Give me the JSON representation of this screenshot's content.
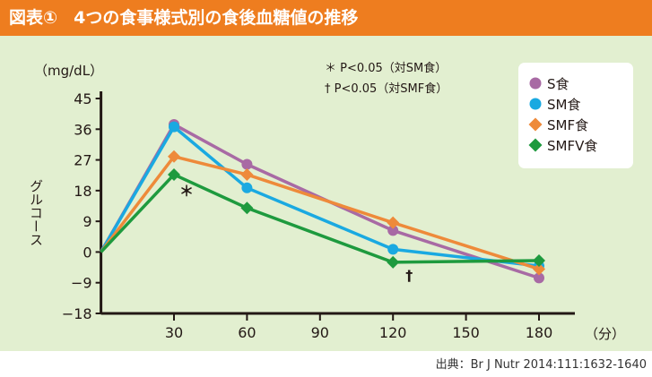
{
  "header": {
    "figure_label": "図表①",
    "title": "4つの食事様式別の食後血糖値の推移"
  },
  "source": "出典：Br J Nutr 2014:111:1632-1640",
  "chart_data": {
    "type": "line",
    "title": "4つの食事様式別の食後血糖値の推移",
    "xlabel": "（分）",
    "ylabel": "グルコース",
    "yunit": "（mg/dL）",
    "x": [
      0,
      30,
      60,
      120,
      180
    ],
    "xticks": [
      30,
      60,
      90,
      120,
      150,
      180
    ],
    "xtick_labels": [
      "30",
      "60",
      "90",
      "120",
      "150",
      "180"
    ],
    "yticks": [
      45,
      36,
      27,
      18,
      9,
      0,
      -9,
      -18
    ],
    "ytick_labels": [
      "45",
      "36",
      "27",
      "18",
      "9",
      "0",
      "−9",
      "−18"
    ],
    "xlim": [
      0,
      180
    ],
    "ylim": [
      -18,
      45
    ],
    "grid": false,
    "legend_position": "top-right",
    "series": [
      {
        "name": "S食",
        "marker": "circle",
        "color": "#a86aa4",
        "values": [
          0,
          37.4,
          25.7,
          6.3,
          -7.6
        ]
      },
      {
        "name": "SM食",
        "marker": "circle",
        "color": "#1aa9e1",
        "values": [
          0,
          36.7,
          18.8,
          0.8,
          -4.1
        ]
      },
      {
        "name": "SMF食",
        "marker": "diamond",
        "color": "#ee8a3a",
        "values": [
          0,
          28,
          22.7,
          8.6,
          -5
        ]
      },
      {
        "name": "SMFV食",
        "marker": "diamond",
        "color": "#1e9a3e",
        "values": [
          0,
          22.7,
          12.9,
          -3,
          -2.5
        ]
      }
    ],
    "annotations": [
      {
        "text": "＊",
        "x": 30,
        "y": 22.7,
        "series": "SMFV食"
      },
      {
        "text": "†",
        "x": 120,
        "y": -3,
        "series": "SMFV食"
      }
    ],
    "notes": [
      "＊ P<0.05（対SM食）",
      "† P<0.05（対SMF食）"
    ]
  }
}
